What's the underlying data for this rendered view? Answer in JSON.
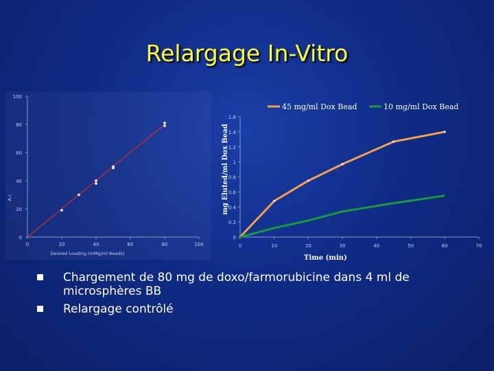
{
  "title": "Relargage In-Vitro",
  "bullets": [
    "Chargement de 80 mg de doxo/farmorubicine dans 4 ml de microsphères BB",
    "Relargage contrôlé"
  ],
  "colors": {
    "title": "#ffff33",
    "line_45": "#f5a24a",
    "line_10": "#1a9a3a",
    "line_left": "#d02a2a"
  },
  "chart_data": [
    {
      "type": "scatter",
      "title": "",
      "xlabel": "Desired Loading (mMg/ml Beads)",
      "ylabel": "A.c",
      "xlim": [
        0,
        100
      ],
      "ylim": [
        0,
        100
      ],
      "x_ticks": [
        0,
        20,
        40,
        60,
        80,
        100
      ],
      "y_ticks": [
        0,
        20,
        40,
        60,
        80,
        100
      ],
      "series": [
        {
          "points": [
            [
              20,
              19
            ],
            [
              30,
              30
            ],
            [
              40,
              40
            ],
            [
              40,
              38
            ],
            [
              50,
              50
            ],
            [
              50,
              49
            ],
            [
              80,
              81
            ],
            [
              80,
              79
            ]
          ],
          "fit_line": [
            [
              0,
              0
            ],
            [
              80,
              80
            ]
          ]
        }
      ]
    },
    {
      "type": "line",
      "title": "",
      "xlabel": "Time (min)",
      "ylabel": "mg Eluted/ml Dox Bead",
      "xlim": [
        0,
        70
      ],
      "ylim": [
        0,
        1.6
      ],
      "x_ticks": [
        0,
        10,
        20,
        30,
        40,
        50,
        60,
        70
      ],
      "y_ticks": [
        0,
        0.2,
        0.4,
        0.6,
        0.8,
        1,
        1.2,
        1.4,
        1.6
      ],
      "legend_position": "top",
      "series": [
        {
          "name": "45 mg/ml Dox Bead",
          "x": [
            0,
            10,
            20,
            30,
            45,
            60
          ],
          "y": [
            0,
            0.48,
            0.75,
            0.97,
            1.27,
            1.4
          ]
        },
        {
          "name": "10 mg/ml Dox Bead",
          "x": [
            0,
            10,
            20,
            30,
            45,
            60
          ],
          "y": [
            0,
            0.12,
            0.22,
            0.34,
            0.45,
            0.55
          ]
        }
      ]
    }
  ]
}
